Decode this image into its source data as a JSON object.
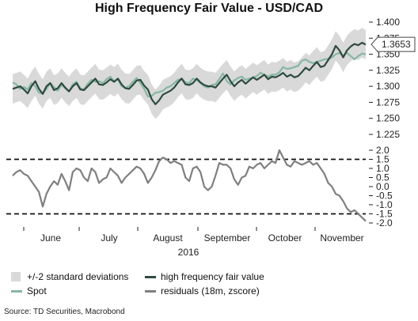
{
  "chart_data": {
    "type": "line",
    "title": "High Frequency Fair Value - USD/CAD",
    "x_axis": {
      "months": [
        "June",
        "July",
        "August",
        "September",
        "October",
        "November"
      ],
      "year": "2016"
    },
    "top_panel": {
      "y_ticks": [
        "1.400",
        "1.375",
        "1.350",
        "1.325",
        "1.300",
        "1.275",
        "1.250",
        "1.225"
      ],
      "ylim": [
        1.225,
        1.4
      ],
      "callout": "1.3653",
      "series": [
        {
          "name": "high frequency fair value",
          "color": "#2f4a3f",
          "values": [
            1.296,
            1.298,
            1.3,
            1.295,
            1.289,
            1.3,
            1.308,
            1.296,
            1.288,
            1.3,
            1.305,
            1.294,
            1.297,
            1.305,
            1.298,
            1.292,
            1.3,
            1.305,
            1.295,
            1.294,
            1.3,
            1.306,
            1.312,
            1.303,
            1.302,
            1.306,
            1.311,
            1.307,
            1.312,
            1.303,
            1.297,
            1.296,
            1.302,
            1.309,
            1.31,
            1.301,
            1.295,
            1.28,
            1.272,
            1.278,
            1.287,
            1.29,
            1.293,
            1.298,
            1.306,
            1.312,
            1.303,
            1.302,
            1.305,
            1.312,
            1.306,
            1.302,
            1.3,
            1.3,
            1.298,
            1.305,
            1.312,
            1.318,
            1.308,
            1.3,
            1.306,
            1.31,
            1.304,
            1.309,
            1.314,
            1.31,
            1.314,
            1.318,
            1.311,
            1.315,
            1.314,
            1.317,
            1.321,
            1.315,
            1.318,
            1.314,
            1.316,
            1.322,
            1.329,
            1.325,
            1.332,
            1.338,
            1.33,
            1.332,
            1.341,
            1.35,
            1.363,
            1.356,
            1.345,
            1.356,
            1.362,
            1.366,
            1.364,
            1.368,
            1.365
          ]
        },
        {
          "name": "Spot",
          "color": "#86b7a3",
          "values": [
            1.306,
            1.303,
            1.296,
            1.299,
            1.295,
            1.305,
            1.3,
            1.29,
            1.289,
            1.296,
            1.305,
            1.299,
            1.293,
            1.302,
            1.297,
            1.292,
            1.303,
            1.307,
            1.297,
            1.295,
            1.304,
            1.31,
            1.307,
            1.308,
            1.305,
            1.311,
            1.315,
            1.308,
            1.311,
            1.3,
            1.298,
            1.3,
            1.307,
            1.313,
            1.305,
            1.296,
            1.284,
            1.285,
            1.29,
            1.291,
            1.293,
            1.298,
            1.3,
            1.305,
            1.31,
            1.312,
            1.306,
            1.305,
            1.312,
            1.31,
            1.305,
            1.3,
            1.298,
            1.302,
            1.303,
            1.311,
            1.32,
            1.308,
            1.303,
            1.309,
            1.313,
            1.315,
            1.31,
            1.312,
            1.314,
            1.316,
            1.321,
            1.318,
            1.315,
            1.318,
            1.318,
            1.322,
            1.33,
            1.327,
            1.328,
            1.33,
            1.332,
            1.34,
            1.342,
            1.338,
            1.336,
            1.338,
            1.34,
            1.342,
            1.343,
            1.345,
            1.35,
            1.352,
            1.348,
            1.352,
            1.347,
            1.342,
            1.347,
            1.351,
            1.35
          ]
        }
      ],
      "band": {
        "name": "+/-2 standard deviations",
        "color": "#d9d9d9",
        "half_width": 0.023
      }
    },
    "bottom_panel": {
      "y_ticks": [
        "2.0",
        "1.5",
        "1.0",
        "0.5",
        "0.0",
        "-0.5",
        "-1.0",
        "-1.5",
        "-2.0"
      ],
      "ylim": [
        -2.0,
        2.0
      ],
      "reference_lines": [
        1.5,
        -1.5
      ],
      "series": [
        {
          "name": "residuals (18m, zscore)",
          "color": "#7f7f7f",
          "values": [
            0.6,
            0.8,
            0.9,
            0.7,
            0.6,
            0.3,
            0.0,
            -0.3,
            -1.1,
            -0.4,
            0.0,
            0.3,
            0.1,
            0.7,
            0.3,
            -0.2,
            0.8,
            1.0,
            0.9,
            0.5,
            0.3,
            1.0,
            0.8,
            0.2,
            0.4,
            0.5,
            1.0,
            0.8,
            0.6,
            0.2,
            0.5,
            0.7,
            0.9,
            1.1,
            1.0,
            0.7,
            0.2,
            0.5,
            0.9,
            1.4,
            1.6,
            1.5,
            1.3,
            1.4,
            1.3,
            1.2,
            0.5,
            0.3,
            1.0,
            1.1,
            0.8,
            0.0,
            -0.2,
            0.0,
            0.6,
            1.3,
            1.2,
            1.2,
            1.0,
            0.4,
            0.1,
            0.5,
            0.6,
            1.1,
            1.0,
            1.2,
            1.3,
            1.0,
            1.2,
            1.4,
            1.3,
            2.0,
            1.6,
            1.2,
            1.1,
            1.4,
            1.3,
            1.2,
            1.3,
            1.4,
            1.2,
            1.3,
            1.0,
            0.7,
            0.2,
            0.0,
            -0.4,
            -0.5,
            -0.8,
            -1.2,
            -1.4,
            -1.3,
            -1.5,
            -1.7,
            -1.9
          ]
        }
      ]
    },
    "legend": {
      "band": "+/-2 standard deviations",
      "hf": "high frequency fair value",
      "spot": "Spot",
      "resid": "residuals (18m, zscore)"
    },
    "source": "Source: TD Securities, Macrobond"
  }
}
